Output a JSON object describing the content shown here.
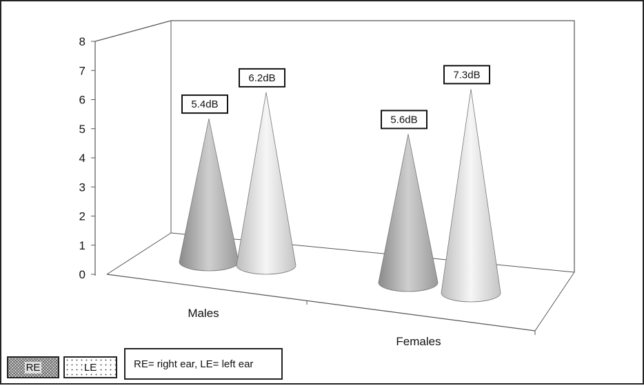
{
  "chart_data": {
    "type": "bar",
    "bar_shape": "cone",
    "categories": [
      "Males",
      "Females"
    ],
    "series": [
      {
        "name": "RE",
        "values": [
          5.4,
          5.6
        ],
        "data_labels": [
          "5.4dB",
          "5.6dB"
        ]
      },
      {
        "name": "LE",
        "values": [
          6.2,
          7.3
        ],
        "data_labels": [
          "6.2dB",
          "7.3dB"
        ]
      }
    ],
    "ylim": [
      0,
      8
    ],
    "yticks": [
      "0",
      "1",
      "2",
      "3",
      "4",
      "5",
      "6",
      "7",
      "8"
    ],
    "title": "",
    "xlabel": "",
    "ylabel": "",
    "legend_position": "bottom-left",
    "legend_note": "RE= right ear, LE= left ear",
    "grid": false,
    "colors": {
      "re": "#b8b8b8",
      "le": "#ececec",
      "frame": "#555555"
    }
  }
}
